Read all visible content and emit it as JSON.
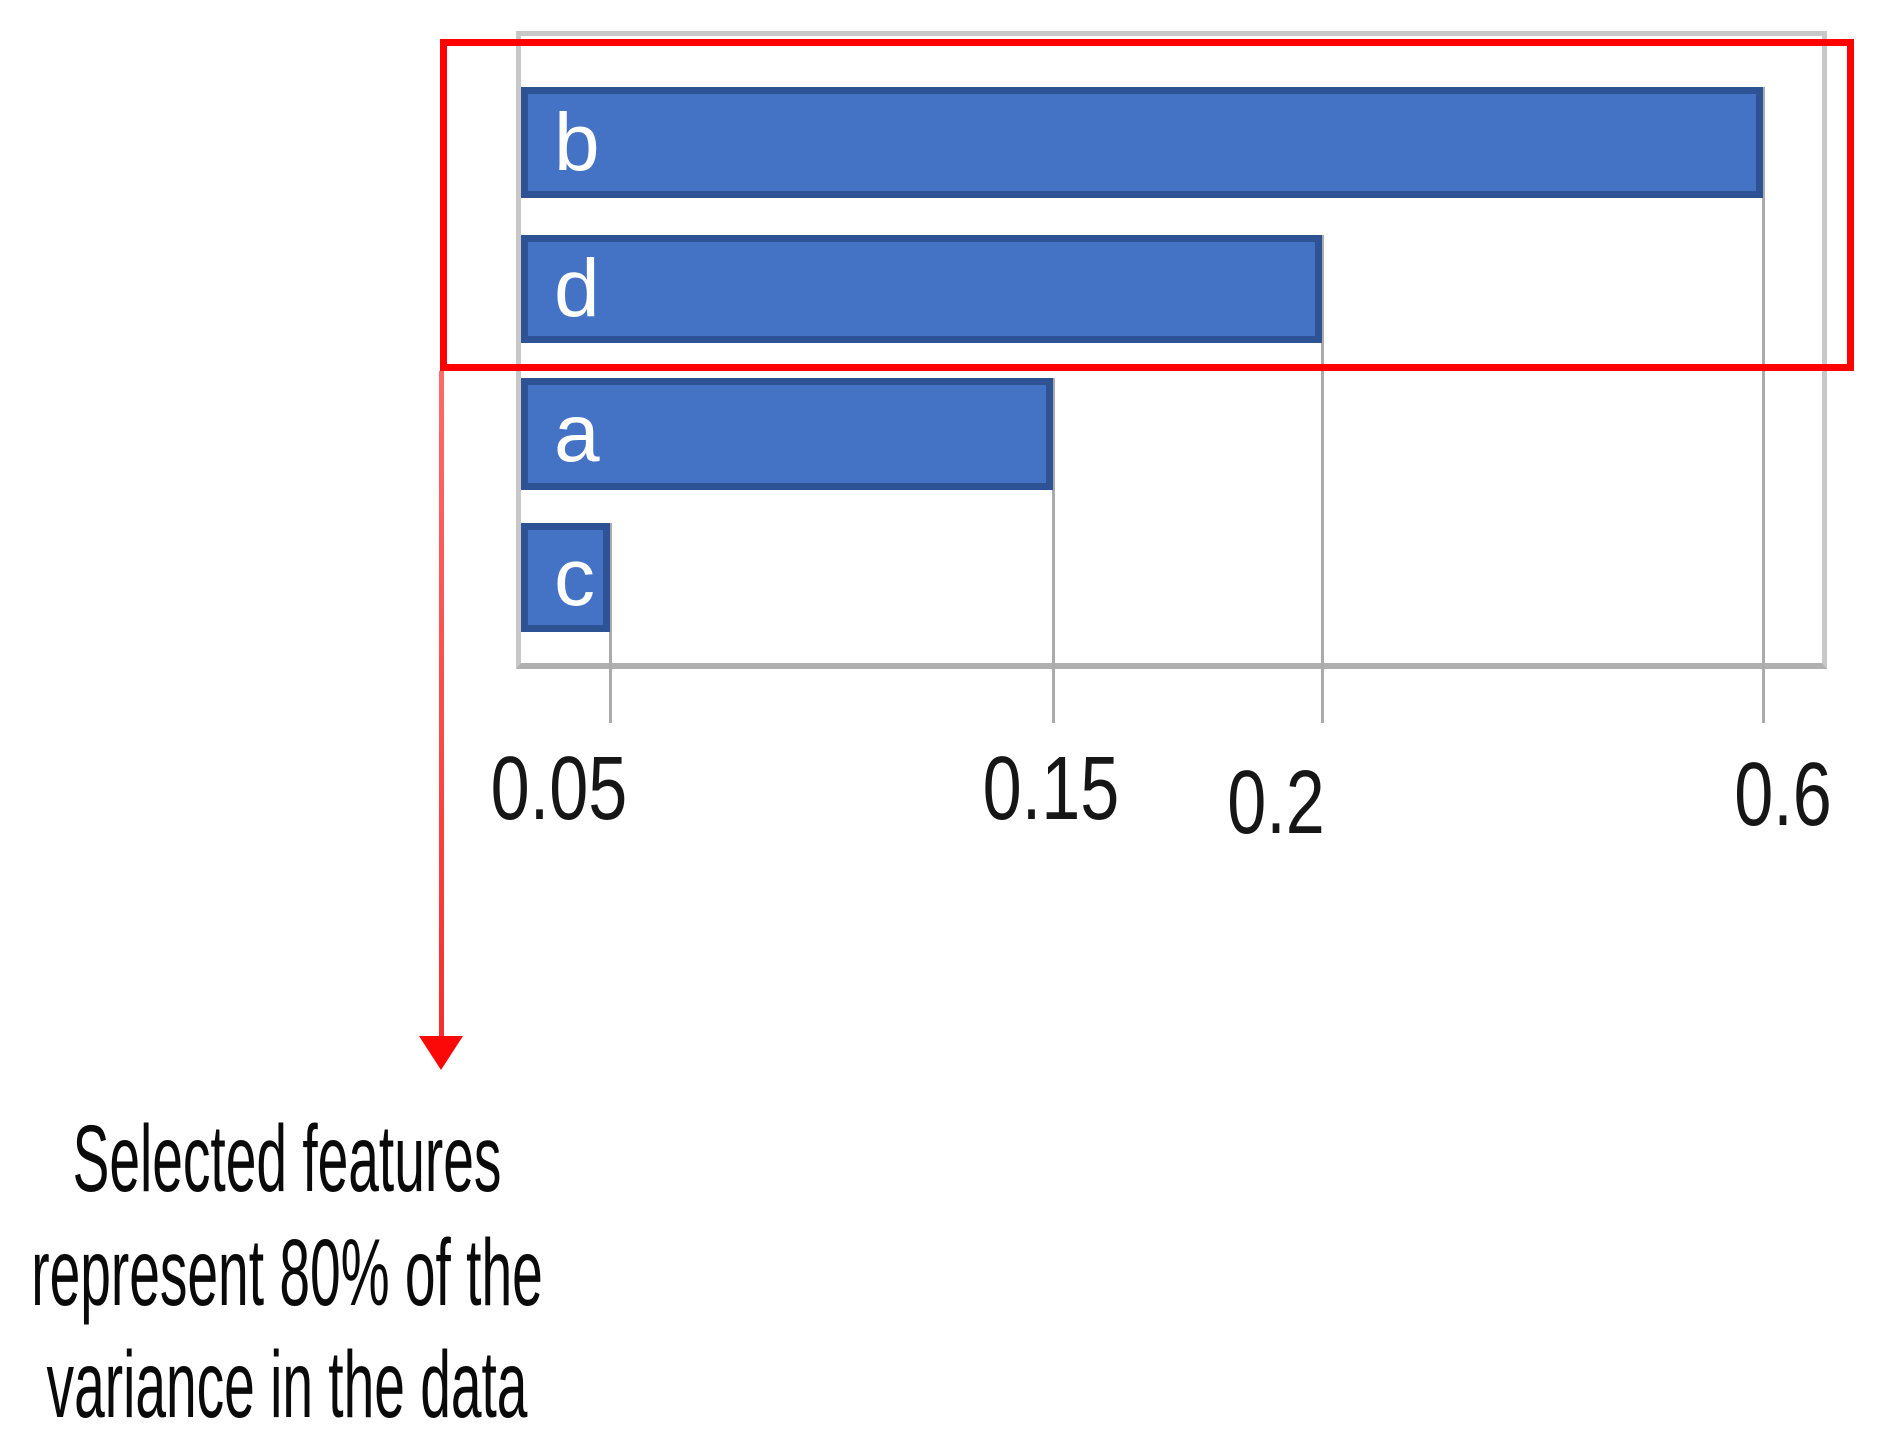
{
  "chart_data": {
    "type": "bar",
    "orientation": "horizontal",
    "title": "",
    "categories": [
      "b",
      "d",
      "a",
      "c"
    ],
    "values": [
      0.6,
      0.2,
      0.15,
      0.05
    ],
    "x_tick_labels": [
      "0.05",
      "0.15",
      "0.2",
      "0.6"
    ],
    "x_tick_values": [
      0.05,
      0.15,
      0.2,
      0.6
    ],
    "xlim": [
      0,
      0.66
    ],
    "legend": "none",
    "gridlines": "vertical drop line at the end of each bar extending below the axis as a tick",
    "bar_labels_inside": [
      "b",
      "d",
      "a",
      "c"
    ],
    "colors": {
      "bar_fill": "#4472c4",
      "bar_border": "#2e5395",
      "frame_gray": "#c8c8c8",
      "axis_gray": "#b0b0b0",
      "tick_line_gray": "#ababab",
      "tick_text": "#161616"
    }
  },
  "annotation": {
    "highlighted_categories": [
      "b",
      "d"
    ],
    "highlight_color": "#fe0101",
    "arrow_icon": "red-down-arrow",
    "callout_lines": [
      "Selected features",
      "represent 80% of the",
      "variance in the data"
    ],
    "callout_text": "Selected features represent 80% of the variance in the data",
    "callout_color": "#0a0a0a"
  }
}
